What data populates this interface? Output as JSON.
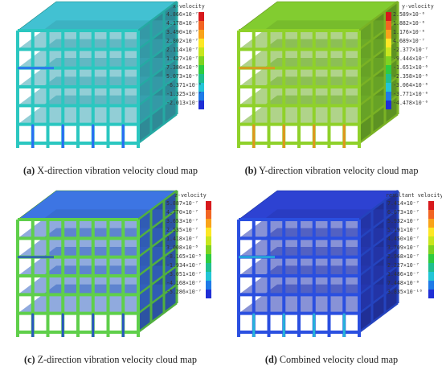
{
  "panels": [
    {
      "id": "a",
      "caption_label": "(a)",
      "caption_text": "X-direction vibration velocity cloud map",
      "legend_title": "x-velocity",
      "ticks": [
        "4.866×10⁻⁷",
        "4.178×10⁻⁷",
        "3.490×10⁻⁷",
        "2.802×10⁻⁷",
        "2.114×10⁻⁷",
        "1.427×10⁻⁷",
        "7.386×10⁻⁸",
        "5.073×10⁻⁹",
        "-6.371×10⁻⁸",
        "-1.325×10⁻⁷",
        "-2.013×10⁻⁷"
      ],
      "colors": [
        "#d7191c",
        "#f26522",
        "#f9a31a",
        "#fde725",
        "#c8e61e",
        "#7ed321",
        "#2ecc40",
        "#1fbf8f",
        "#22c5d6",
        "#1e7be8",
        "#1f2fd6"
      ],
      "frame_color": "#2bc7c0",
      "slab_color": "#3fb8c8",
      "accent_color": "#2a5cff"
    },
    {
      "id": "b",
      "caption_label": "(b)",
      "caption_text": "Y-direction vibration velocity cloud map",
      "legend_title": "y-velocity",
      "ticks": [
        "2.589×10⁻⁶",
        "1.882×10⁻⁶",
        "1.176×10⁻⁶",
        "4.689×10⁻⁷",
        "-2.377×10⁻⁷",
        "-9.444×10⁻⁷",
        "-1.651×10⁻⁶",
        "-2.358×10⁻⁶",
        "-3.064×10⁻⁶",
        "-3.771×10⁻⁶",
        "-4.478×10⁻⁶"
      ],
      "colors": [
        "#d7191c",
        "#f26522",
        "#f9a31a",
        "#fde725",
        "#c8e61e",
        "#7ed321",
        "#2ecc40",
        "#1fbf8f",
        "#22c5d6",
        "#1e7be8",
        "#1f2fd6"
      ],
      "frame_color": "#8fd12a",
      "slab_color": "#7cc22e",
      "accent_color": "#f08a1c"
    },
    {
      "id": "c",
      "caption_label": "(c)",
      "caption_text": "Z-direction vibration velocity cloud map",
      "legend_title": "z-velocity",
      "ticks": [
        "5.887×10⁻⁷",
        "4.770×10⁻⁷",
        "3.653×10⁻⁷",
        "2.535×10⁻⁷",
        "1.418×10⁻⁷",
        "3.008×10⁻⁸",
        "-8.165×10⁻⁸",
        "-1.934×10⁻⁷",
        "-3.051×10⁻⁷",
        "-4.168×10⁻⁷",
        "-5.286×10⁻⁷"
      ],
      "colors": [
        "#d7191c",
        "#f26522",
        "#f9a31a",
        "#fde725",
        "#c8e61e",
        "#7ed321",
        "#2ecc40",
        "#1fbf8f",
        "#22c5d6",
        "#1e7be8",
        "#1f2fd6"
      ],
      "frame_color": "#5fcf4a",
      "slab_color": "#3a6fd8",
      "accent_color": "#1f3fd6"
    },
    {
      "id": "d",
      "caption_label": "(d)",
      "caption_text": "Combined velocity cloud map",
      "legend_title": "resultant velocity",
      "ticks": [
        "7.414×10⁻⁷",
        "6.673×10⁻⁷",
        "5.932×10⁻⁷",
        "5.191×10⁻⁷",
        "4.450×10⁻⁷",
        "3.709×10⁻⁷",
        "2.968×10⁻⁷",
        "2.227×10⁻⁷",
        "1.486×10⁻⁷",
        "7.448×10⁻⁸",
        "3.835×10⁻¹⁰"
      ],
      "colors": [
        "#d7191c",
        "#f26522",
        "#f9a31a",
        "#fde725",
        "#c8e61e",
        "#7ed321",
        "#2ecc40",
        "#1fbf8f",
        "#22c5d6",
        "#1e7be8",
        "#1f2fd6"
      ],
      "frame_color": "#2a4fe0",
      "slab_color": "#2b3fc8",
      "accent_color": "#25c6d8"
    }
  ]
}
